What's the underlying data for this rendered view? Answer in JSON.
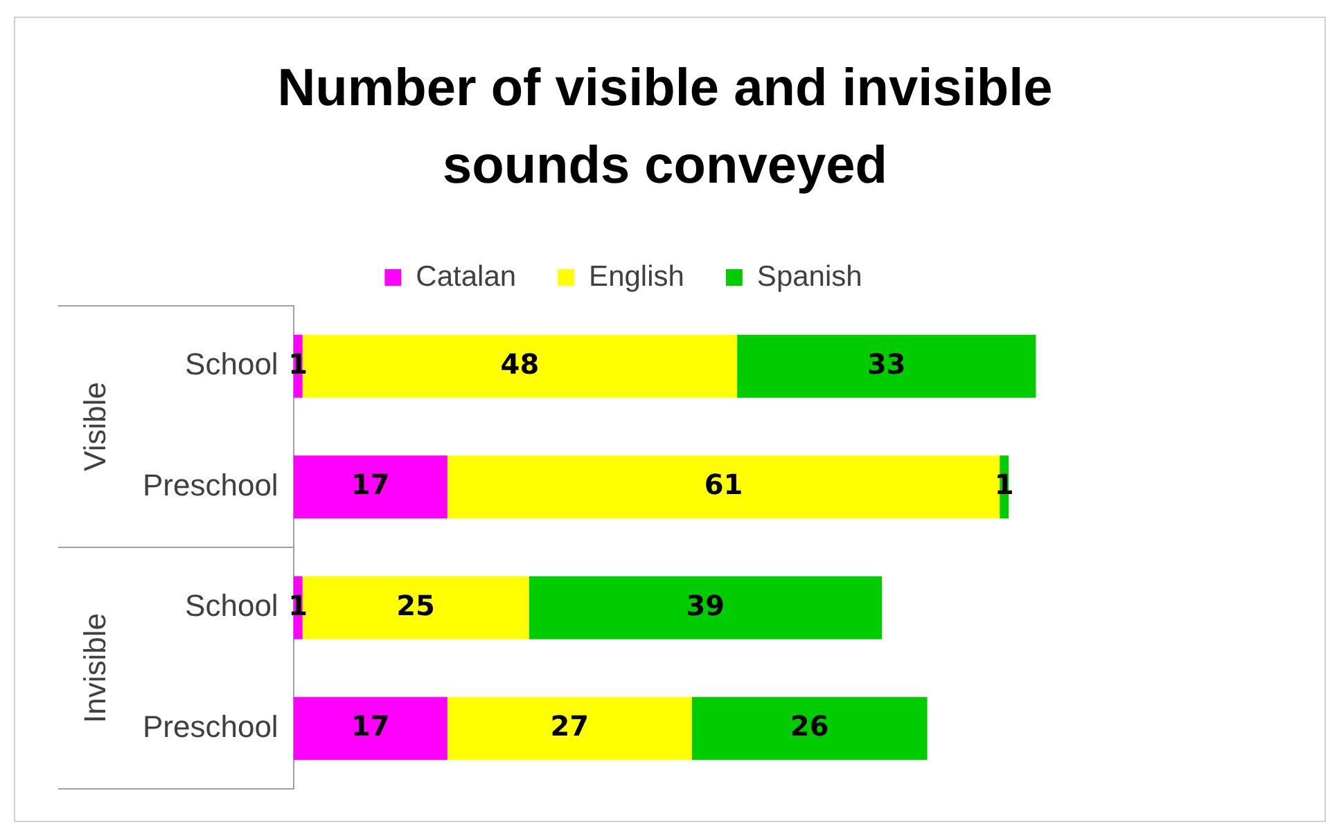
{
  "chart_data": {
    "type": "bar",
    "title": "Number of visible and invisible sounds conveyed",
    "orientation": "horizontal",
    "stacked": true,
    "data_labels": true,
    "legend": "top",
    "categories": [
      "School",
      "Preschool",
      "School",
      "Preschool"
    ],
    "annotations": [
      "Visible",
      "Invisible"
    ],
    "series": [
      {
        "name": "Catalan",
        "color": "#ff00ff",
        "values": [
          1,
          17,
          1,
          17
        ]
      },
      {
        "name": "English",
        "color": "#ffff00",
        "values": [
          48,
          61,
          25,
          27
        ]
      },
      {
        "name": "Spanish",
        "color": "#00cc00",
        "values": [
          33,
          1,
          39,
          26
        ]
      }
    ]
  }
}
